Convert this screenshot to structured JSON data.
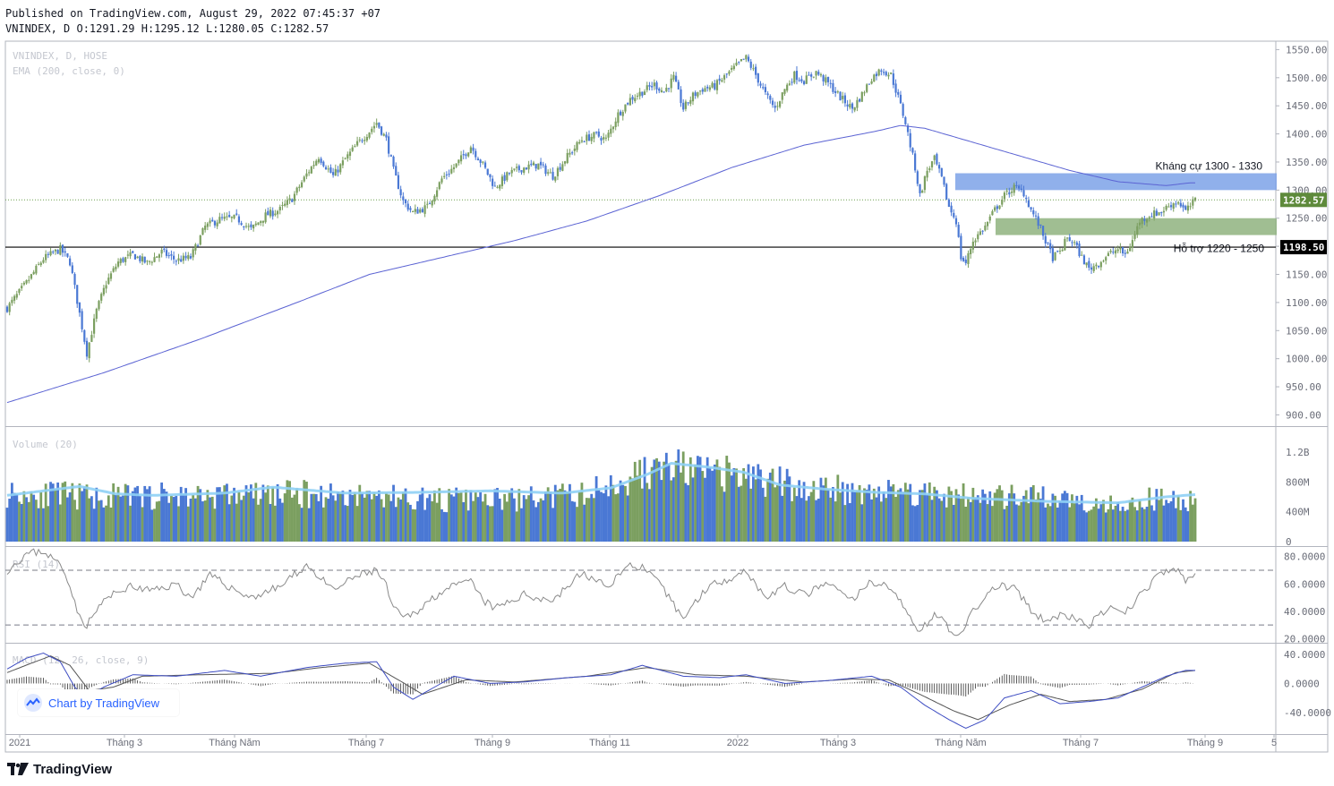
{
  "header": {
    "published": "Published on TradingView.com, August 29, 2022 07:45:37 +07",
    "symbol_line": "VNINDEX, D O:1291.29 H:1295.12 L:1280.05 C:1282.57"
  },
  "colors": {
    "up": "#7b9f60",
    "down": "#4a78d4",
    "ema": "#5b63d3",
    "vol_ma": "#8fd0f5",
    "resistance_zone": "#7da2e8",
    "support_zone": "#8fb37f",
    "rsi_line": "#8a8a8a",
    "macd_line": "#3d4cc2",
    "signal_line": "#555555"
  },
  "chart_data": [
    {
      "pane": "price",
      "type": "candlestick",
      "legend": [
        "VNINDEX, D, HOSE",
        "EMA (200, close, 0)"
      ],
      "ylim": [
        880,
        1565
      ],
      "y_ticks": [
        {
          "v": 1550,
          "label": "1550.00"
        },
        {
          "v": 1500,
          "label": "1500.00"
        },
        {
          "v": 1450,
          "label": "1450.00"
        },
        {
          "v": 1400,
          "label": "1400.00"
        },
        {
          "v": 1350,
          "label": "1350.00"
        },
        {
          "v": 1300,
          "label": "1300.00"
        },
        {
          "v": 1250,
          "label": "1250.00"
        },
        {
          "v": 1200,
          "label": "1200.00"
        },
        {
          "v": 1150,
          "label": "1150.00"
        },
        {
          "v": 1100,
          "label": "1100.00"
        },
        {
          "v": 1050,
          "label": "1050.00"
        },
        {
          "v": 1000,
          "label": "1000.00"
        },
        {
          "v": 950,
          "label": "950.00"
        },
        {
          "v": 900,
          "label": "900.00"
        }
      ],
      "x_ticks": [
        "2021",
        "Tháng 3",
        "Tháng Năm",
        "Tháng 7",
        "Tháng 9",
        "Tháng 11",
        "2022",
        "Tháng 3",
        "Tháng Năm",
        "Tháng 7",
        "Tháng 9",
        "5"
      ],
      "close_anchors": [
        [
          0,
          1090
        ],
        [
          8,
          1135
        ],
        [
          15,
          1178
        ],
        [
          22,
          1195
        ],
        [
          26,
          1172
        ],
        [
          30,
          1080
        ],
        [
          33,
          1010
        ],
        [
          37,
          1085
        ],
        [
          41,
          1135
        ],
        [
          46,
          1172
        ],
        [
          52,
          1185
        ],
        [
          58,
          1170
        ],
        [
          64,
          1190
        ],
        [
          70,
          1175
        ],
        [
          76,
          1180
        ],
        [
          82,
          1235
        ],
        [
          88,
          1248
        ],
        [
          95,
          1250
        ],
        [
          101,
          1230
        ],
        [
          107,
          1255
        ],
        [
          113,
          1265
        ],
        [
          118,
          1285
        ],
        [
          124,
          1328
        ],
        [
          129,
          1360
        ],
        [
          135,
          1325
        ],
        [
          140,
          1355
        ],
        [
          145,
          1382
        ],
        [
          150,
          1405
        ],
        [
          153,
          1420
        ],
        [
          157,
          1390
        ],
        [
          160,
          1335
        ],
        [
          164,
          1280
        ],
        [
          168,
          1260
        ],
        [
          174,
          1270
        ],
        [
          180,
          1320
        ],
        [
          186,
          1345
        ],
        [
          192,
          1378
        ],
        [
          197,
          1345
        ],
        [
          202,
          1305
        ],
        [
          208,
          1330
        ],
        [
          214,
          1340
        ],
        [
          220,
          1345
        ],
        [
          226,
          1325
        ],
        [
          232,
          1360
        ],
        [
          238,
          1390
        ],
        [
          244,
          1398
        ],
        [
          248,
          1390
        ],
        [
          253,
          1435
        ],
        [
          258,
          1462
        ],
        [
          263,
          1475
        ],
        [
          268,
          1488
        ],
        [
          272,
          1475
        ],
        [
          276,
          1500
        ],
        [
          280,
          1445
        ],
        [
          284,
          1468
        ],
        [
          288,
          1480
        ],
        [
          293,
          1485
        ],
        [
          298,
          1505
        ],
        [
          303,
          1525
        ],
        [
          306,
          1535
        ],
        [
          310,
          1505
        ],
        [
          314,
          1470
        ],
        [
          318,
          1445
        ],
        [
          322,
          1480
        ],
        [
          326,
          1505
        ],
        [
          330,
          1495
        ],
        [
          335,
          1510
        ],
        [
          340,
          1490
        ],
        [
          345,
          1465
        ],
        [
          350,
          1445
        ],
        [
          354,
          1470
        ],
        [
          358,
          1500
        ],
        [
          362,
          1515
        ],
        [
          366,
          1505
        ],
        [
          369,
          1465
        ],
        [
          372,
          1420
        ],
        [
          374,
          1380
        ],
        [
          376,
          1340
        ],
        [
          378,
          1290
        ],
        [
          381,
          1335
        ],
        [
          384,
          1355
        ],
        [
          387,
          1320
        ],
        [
          390,
          1270
        ],
        [
          393,
          1245
        ],
        [
          395,
          1180
        ],
        [
          397,
          1170
        ],
        [
          400,
          1210
        ],
        [
          405,
          1235
        ],
        [
          409,
          1265
        ],
        [
          413,
          1290
        ],
        [
          417,
          1305
        ],
        [
          421,
          1295
        ],
        [
          424,
          1265
        ],
        [
          427,
          1240
        ],
        [
          430,
          1210
        ],
        [
          433,
          1180
        ],
        [
          436,
          1190
        ],
        [
          439,
          1215
        ],
        [
          442,
          1205
        ],
        [
          445,
          1180
        ],
        [
          448,
          1160
        ],
        [
          452,
          1170
        ],
        [
          456,
          1185
        ],
        [
          460,
          1195
        ],
        [
          463,
          1185
        ],
        [
          466,
          1210
        ],
        [
          469,
          1245
        ],
        [
          473,
          1255
        ],
        [
          478,
          1262
        ],
        [
          482,
          1275
        ],
        [
          485,
          1280
        ],
        [
          488,
          1262
        ],
        [
          492,
          1282
        ]
      ],
      "ema_anchors": [
        [
          0,
          922
        ],
        [
          40,
          975
        ],
        [
          80,
          1035
        ],
        [
          120,
          1100
        ],
        [
          150,
          1150
        ],
        [
          180,
          1180
        ],
        [
          210,
          1210
        ],
        [
          240,
          1245
        ],
        [
          270,
          1290
        ],
        [
          300,
          1340
        ],
        [
          330,
          1380
        ],
        [
          360,
          1405
        ],
        [
          370,
          1415
        ],
        [
          380,
          1410
        ],
        [
          400,
          1385
        ],
        [
          420,
          1360
        ],
        [
          440,
          1335
        ],
        [
          460,
          1315
        ],
        [
          480,
          1308
        ],
        [
          490,
          1313
        ]
      ],
      "horizontal_line": {
        "value": 1198.5,
        "label": "1198.50"
      },
      "last_price": {
        "value": 1282.57,
        "label": "1282.57"
      },
      "zones": [
        {
          "name": "resistance",
          "from": 1300,
          "to": 1330,
          "label": "Kháng cự 1300 - 1330"
        },
        {
          "name": "support",
          "from": 1220,
          "to": 1250,
          "label": "Hỗ trợ 1220 - 1250"
        }
      ]
    },
    {
      "pane": "volume",
      "type": "bar",
      "legend": "Volume (20)",
      "ylim": [
        0,
        1500
      ],
      "y_ticks": [
        {
          "v": 1200,
          "label": "1.2B"
        },
        {
          "v": 800,
          "label": "800M"
        },
        {
          "v": 400,
          "label": "400M"
        },
        {
          "v": 0,
          "label": "0"
        }
      ],
      "level_anchors": [
        [
          0,
          650
        ],
        [
          40,
          600
        ],
        [
          80,
          620
        ],
        [
          120,
          640
        ],
        [
          150,
          620
        ],
        [
          180,
          560
        ],
        [
          210,
          560
        ],
        [
          240,
          640
        ],
        [
          260,
          880
        ],
        [
          275,
          1000
        ],
        [
          290,
          900
        ],
        [
          305,
          880
        ],
        [
          330,
          720
        ],
        [
          360,
          680
        ],
        [
          380,
          660
        ],
        [
          400,
          600
        ],
        [
          430,
          580
        ],
        [
          460,
          520
        ],
        [
          480,
          580
        ],
        [
          492,
          560
        ]
      ],
      "ma_anchors": [
        [
          0,
          620
        ],
        [
          30,
          740
        ],
        [
          45,
          640
        ],
        [
          60,
          620
        ],
        [
          90,
          650
        ],
        [
          110,
          730
        ],
        [
          140,
          650
        ],
        [
          170,
          660
        ],
        [
          200,
          680
        ],
        [
          230,
          650
        ],
        [
          250,
          720
        ],
        [
          265,
          900
        ],
        [
          275,
          1050
        ],
        [
          290,
          1000
        ],
        [
          305,
          930
        ],
        [
          320,
          760
        ],
        [
          340,
          700
        ],
        [
          360,
          660
        ],
        [
          380,
          640
        ],
        [
          400,
          580
        ],
        [
          430,
          540
        ],
        [
          460,
          520
        ],
        [
          480,
          600
        ],
        [
          492,
          630
        ]
      ]
    },
    {
      "pane": "rsi",
      "type": "line",
      "legend": "RSI (14)",
      "ylim": [
        17,
        87
      ],
      "y_ticks": [
        {
          "v": 80,
          "label": "80.0000"
        },
        {
          "v": 60,
          "label": "60.0000"
        },
        {
          "v": 40,
          "label": "40.0000"
        },
        {
          "v": 20,
          "label": "20.0000"
        }
      ],
      "bands": [
        70,
        30
      ],
      "anchors": [
        [
          0,
          70
        ],
        [
          8,
          82
        ],
        [
          15,
          84
        ],
        [
          22,
          74
        ],
        [
          26,
          60
        ],
        [
          30,
          35
        ],
        [
          33,
          30
        ],
        [
          40,
          48
        ],
        [
          50,
          58
        ],
        [
          60,
          55
        ],
        [
          70,
          60
        ],
        [
          76,
          50
        ],
        [
          84,
          66
        ],
        [
          95,
          55
        ],
        [
          101,
          50
        ],
        [
          113,
          58
        ],
        [
          124,
          74
        ],
        [
          135,
          55
        ],
        [
          145,
          66
        ],
        [
          153,
          70
        ],
        [
          157,
          58
        ],
        [
          160,
          42
        ],
        [
          164,
          35
        ],
        [
          168,
          38
        ],
        [
          180,
          55
        ],
        [
          192,
          62
        ],
        [
          197,
          48
        ],
        [
          202,
          42
        ],
        [
          214,
          52
        ],
        [
          226,
          48
        ],
        [
          238,
          68
        ],
        [
          248,
          58
        ],
        [
          258,
          74
        ],
        [
          263,
          72
        ],
        [
          270,
          60
        ],
        [
          280,
          35
        ],
        [
          290,
          58
        ],
        [
          300,
          65
        ],
        [
          306,
          70
        ],
        [
          314,
          50
        ],
        [
          322,
          58
        ],
        [
          330,
          52
        ],
        [
          340,
          60
        ],
        [
          350,
          48
        ],
        [
          358,
          62
        ],
        [
          366,
          58
        ],
        [
          372,
          40
        ],
        [
          378,
          26
        ],
        [
          381,
          32
        ],
        [
          385,
          38
        ],
        [
          390,
          28
        ],
        [
          395,
          22
        ],
        [
          400,
          40
        ],
        [
          409,
          58
        ],
        [
          417,
          58
        ],
        [
          424,
          40
        ],
        [
          430,
          32
        ],
        [
          436,
          38
        ],
        [
          442,
          34
        ],
        [
          448,
          30
        ],
        [
          456,
          42
        ],
        [
          463,
          38
        ],
        [
          469,
          52
        ],
        [
          478,
          68
        ],
        [
          485,
          70
        ],
        [
          488,
          62
        ],
        [
          492,
          68
        ]
      ]
    },
    {
      "pane": "macd",
      "type": "line",
      "legend": "MACD (12, 26, close, 9)",
      "ylim": [
        -70,
        55
      ],
      "y_ticks": [
        {
          "v": 40,
          "label": "40.0000"
        },
        {
          "v": 0,
          "label": "0.0000"
        },
        {
          "v": -40,
          "label": "-40.0000"
        }
      ],
      "macd_anchors": [
        [
          0,
          20
        ],
        [
          8,
          35
        ],
        [
          15,
          42
        ],
        [
          22,
          30
        ],
        [
          28,
          -5
        ],
        [
          32,
          -20
        ],
        [
          40,
          -5
        ],
        [
          52,
          12
        ],
        [
          70,
          10
        ],
        [
          90,
          18
        ],
        [
          105,
          10
        ],
        [
          124,
          22
        ],
        [
          140,
          28
        ],
        [
          153,
          30
        ],
        [
          160,
          -5
        ],
        [
          168,
          -22
        ],
        [
          185,
          10
        ],
        [
          200,
          0
        ],
        [
          214,
          2
        ],
        [
          232,
          8
        ],
        [
          250,
          12
        ],
        [
          263,
          25
        ],
        [
          280,
          10
        ],
        [
          295,
          8
        ],
        [
          306,
          12
        ],
        [
          322,
          0
        ],
        [
          340,
          4
        ],
        [
          358,
          10
        ],
        [
          370,
          -5
        ],
        [
          380,
          -30
        ],
        [
          390,
          -50
        ],
        [
          397,
          -62
        ],
        [
          405,
          -50
        ],
        [
          413,
          -20
        ],
        [
          424,
          -10
        ],
        [
          436,
          -28
        ],
        [
          448,
          -25
        ],
        [
          460,
          -20
        ],
        [
          470,
          -5
        ],
        [
          480,
          10
        ],
        [
          488,
          18
        ],
        [
          492,
          18
        ]
      ],
      "signal_anchors": [
        [
          0,
          15
        ],
        [
          10,
          28
        ],
        [
          18,
          38
        ],
        [
          26,
          25
        ],
        [
          34,
          -10
        ],
        [
          44,
          -5
        ],
        [
          56,
          10
        ],
        [
          80,
          12
        ],
        [
          110,
          14
        ],
        [
          130,
          22
        ],
        [
          150,
          28
        ],
        [
          162,
          5
        ],
        [
          172,
          -15
        ],
        [
          190,
          5
        ],
        [
          210,
          2
        ],
        [
          240,
          10
        ],
        [
          265,
          22
        ],
        [
          285,
          12
        ],
        [
          306,
          10
        ],
        [
          330,
          2
        ],
        [
          350,
          6
        ],
        [
          365,
          5
        ],
        [
          378,
          -15
        ],
        [
          392,
          -38
        ],
        [
          402,
          -50
        ],
        [
          415,
          -30
        ],
        [
          428,
          -15
        ],
        [
          440,
          -25
        ],
        [
          455,
          -22
        ],
        [
          470,
          -8
        ],
        [
          484,
          15
        ],
        [
          492,
          18
        ]
      ]
    }
  ],
  "badge": {
    "text": "Chart by TradingView",
    "icon": "tradingview-cloud-icon"
  },
  "brand": {
    "text": "TradingView",
    "icon": "tradingview-logo-icon"
  }
}
